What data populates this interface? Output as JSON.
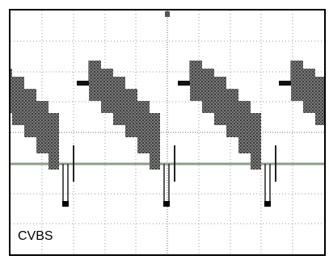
{
  "screen": {
    "label": "CVBS"
  }
}
